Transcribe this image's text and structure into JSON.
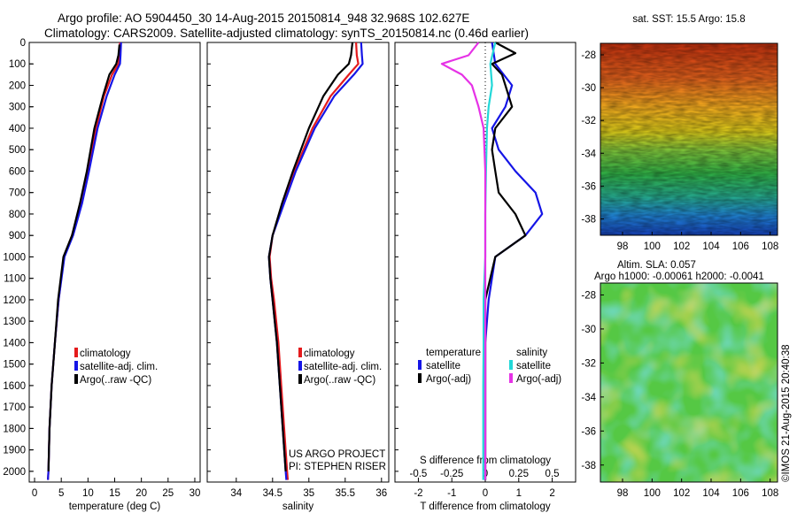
{
  "header": {
    "line1": "Argo profile: AO 5904450_30 14-Aug-2015 20150814_948 32.968S 102.627E",
    "line2": "Climatology: CARS2009. Satellite-adjusted climatology: synTS_20150814.nc (0.46d earlier)"
  },
  "colors": {
    "climatology": "#e41a1c",
    "satellite": "#1515e6",
    "argo": "#000000",
    "sat_salinity": "#22d8d8",
    "argo_salinity": "#e632e6"
  },
  "legend_profiles": [
    "climatology",
    "satellite-adj. clim.",
    "Argo(..raw -QC)"
  ],
  "legend_diff": {
    "temp_header": "temperature",
    "sal_header": "salinity",
    "sat": "satellite",
    "argo": "Argo(-adj)"
  },
  "credit": {
    "line1": "US ARGO PROJECT",
    "line2": "PI: STEPHEN RISER"
  },
  "sst_title": "sat. SST: 15.5 Argo: 15.8",
  "sla_title1": "Altim. SLA: 0.057",
  "sla_title2": "Argo h1000: -0.00061 h2000: -0.0041",
  "side_stamp": "©IMOS 21-Aug-2015 20:40:38",
  "chart_data": [
    {
      "type": "line",
      "xlabel": "temperature (deg C)",
      "ylim": [
        2050,
        0
      ],
      "xlim": [
        -1,
        31
      ],
      "xticks": [
        0,
        5,
        10,
        15,
        20,
        25,
        30
      ],
      "yticks": [
        0,
        100,
        200,
        300,
        400,
        500,
        600,
        700,
        800,
        900,
        1000,
        1100,
        1200,
        1300,
        1400,
        1500,
        1600,
        1700,
        1800,
        1900,
        2000
      ],
      "series": [
        {
          "name": "climatology",
          "color": "#e41a1c",
          "points": [
            [
              16,
              0
            ],
            [
              15.9,
              60
            ],
            [
              15.7,
              100
            ],
            [
              14.5,
              150
            ],
            [
              13,
              250
            ],
            [
              11.5,
              400
            ],
            [
              10,
              600
            ],
            [
              8.7,
              750
            ],
            [
              7,
              900
            ],
            [
              5.5,
              1000
            ],
            [
              4.5,
              1200
            ],
            [
              3.8,
              1400
            ],
            [
              3.2,
              1600
            ],
            [
              2.8,
              1800
            ],
            [
              2.6,
              2000
            ],
            [
              2.5,
              2040
            ]
          ]
        },
        {
          "name": "satellite-adj. clim.",
          "color": "#1515e6",
          "points": [
            [
              16.2,
              0
            ],
            [
              16.1,
              60
            ],
            [
              16,
              100
            ],
            [
              15,
              150
            ],
            [
              13.5,
              250
            ],
            [
              11.8,
              400
            ],
            [
              10.2,
              600
            ],
            [
              8.9,
              750
            ],
            [
              7.2,
              900
            ],
            [
              5.6,
              1000
            ],
            [
              4.5,
              1200
            ],
            [
              3.8,
              1400
            ],
            [
              3.2,
              1600
            ],
            [
              2.8,
              1800
            ],
            [
              2.6,
              2000
            ],
            [
              2.5,
              2040
            ]
          ]
        },
        {
          "name": "Argo(..raw -QC)",
          "color": "#000000",
          "points": [
            [
              15.9,
              10
            ],
            [
              15.7,
              60
            ],
            [
              15.3,
              100
            ],
            [
              14,
              150
            ],
            [
              12.8,
              250
            ],
            [
              11.2,
              400
            ],
            [
              9.8,
              600
            ],
            [
              8.5,
              750
            ],
            [
              7,
              900
            ],
            [
              5.4,
              1000
            ],
            [
              4.4,
              1200
            ],
            [
              3.8,
              1400
            ],
            [
              3.2,
              1600
            ],
            [
              2.8,
              1800
            ],
            [
              2.6,
              2000
            ]
          ]
        }
      ]
    },
    {
      "type": "line",
      "xlabel": "salinity",
      "ylim": [
        2050,
        0
      ],
      "xlim": [
        33.6,
        36.1
      ],
      "xticks": [
        34,
        34.5,
        35,
        35.5,
        36
      ],
      "series": [
        {
          "name": "climatology",
          "color": "#e41a1c",
          "points": [
            [
              35.65,
              0
            ],
            [
              35.66,
              60
            ],
            [
              35.68,
              100
            ],
            [
              35.55,
              150
            ],
            [
              35.3,
              250
            ],
            [
              35.05,
              400
            ],
            [
              34.8,
              600
            ],
            [
              34.65,
              750
            ],
            [
              34.5,
              900
            ],
            [
              34.46,
              1000
            ],
            [
              34.48,
              1100
            ],
            [
              34.52,
              1200
            ],
            [
              34.58,
              1400
            ],
            [
              34.62,
              1600
            ],
            [
              34.66,
              1800
            ],
            [
              34.7,
              2000
            ],
            [
              34.71,
              2040
            ]
          ]
        },
        {
          "name": "satellite-adj. clim.",
          "color": "#1515e6",
          "points": [
            [
              35.72,
              0
            ],
            [
              35.73,
              60
            ],
            [
              35.74,
              100
            ],
            [
              35.62,
              150
            ],
            [
              35.35,
              250
            ],
            [
              35.08,
              400
            ],
            [
              34.82,
              600
            ],
            [
              34.66,
              750
            ],
            [
              34.5,
              900
            ],
            [
              34.45,
              1000
            ],
            [
              34.47,
              1100
            ],
            [
              34.5,
              1200
            ],
            [
              34.56,
              1400
            ],
            [
              34.6,
              1600
            ],
            [
              34.64,
              1800
            ],
            [
              34.68,
              2000
            ],
            [
              34.69,
              2040
            ]
          ]
        },
        {
          "name": "Argo(..raw -QC)",
          "color": "#000000",
          "points": [
            [
              35.6,
              0
            ],
            [
              35.58,
              60
            ],
            [
              35.55,
              100
            ],
            [
              35.4,
              150
            ],
            [
              35.2,
              250
            ],
            [
              35.0,
              400
            ],
            [
              34.78,
              600
            ],
            [
              34.63,
              750
            ],
            [
              34.5,
              900
            ],
            [
              34.45,
              1000
            ],
            [
              34.47,
              1100
            ],
            [
              34.5,
              1200
            ],
            [
              34.56,
              1400
            ],
            [
              34.6,
              1600
            ],
            [
              34.64,
              1800
            ],
            [
              34.68,
              2000
            ]
          ]
        }
      ]
    },
    {
      "type": "line",
      "xlabel": "T difference from climatology",
      "top_label": "S difference from climatology",
      "ylim": [
        2050,
        0
      ],
      "xlim": [
        -2.7,
        2.7
      ],
      "xticks": [
        -2,
        -1,
        0,
        1,
        2
      ],
      "top_ticks": [
        "-0.5",
        "-0.25",
        "0",
        "0.25",
        "0.5"
      ],
      "series": [
        {
          "name": "temperature satellite",
          "color": "#1515e6",
          "points": [
            [
              0.2,
              0
            ],
            [
              0.3,
              100
            ],
            [
              0.8,
              200
            ],
            [
              0.6,
              300
            ],
            [
              0.2,
              400
            ],
            [
              0.4,
              500
            ],
            [
              0.9,
              600
            ],
            [
              1.5,
              700
            ],
            [
              1.7,
              800
            ],
            [
              1.2,
              900
            ],
            [
              0.3,
              1000
            ],
            [
              0.1,
              1200
            ],
            [
              0,
              1400
            ],
            [
              0,
              1600
            ],
            [
              0,
              1800
            ],
            [
              0,
              2040
            ]
          ]
        },
        {
          "name": "temperature Argo(-adj)",
          "color": "#000000",
          "points": [
            [
              0.3,
              0
            ],
            [
              0.9,
              50
            ],
            [
              0.2,
              100
            ],
            [
              0.5,
              150
            ],
            [
              0.6,
              200
            ],
            [
              0.8,
              300
            ],
            [
              0.3,
              400
            ],
            [
              0.2,
              500
            ],
            [
              0.3,
              600
            ],
            [
              0.4,
              700
            ],
            [
              0.9,
              800
            ],
            [
              1.2,
              900
            ],
            [
              0.3,
              1000
            ],
            [
              0,
              1200
            ],
            [
              0,
              1400
            ],
            [
              0,
              1600
            ],
            [
              0,
              1800
            ],
            [
              0,
              2040
            ]
          ]
        },
        {
          "name": "salinity satellite",
          "color": "#22d8d8",
          "points": [
            [
              0.3,
              0
            ],
            [
              0.15,
              100
            ],
            [
              0.2,
              200
            ],
            [
              0.1,
              300
            ],
            [
              0.05,
              400
            ],
            [
              0.02,
              600
            ],
            [
              0,
              800
            ],
            [
              0,
              1000
            ],
            [
              -0.05,
              1200
            ],
            [
              -0.05,
              1400
            ],
            [
              -0.06,
              1600
            ],
            [
              -0.06,
              1800
            ],
            [
              -0.06,
              2040
            ]
          ]
        },
        {
          "name": "salinity Argo(-adj)",
          "color": "#e632e6",
          "points": [
            [
              -0.2,
              0
            ],
            [
              -0.5,
              60
            ],
            [
              -1.3,
              100
            ],
            [
              -0.7,
              150
            ],
            [
              -0.4,
              200
            ],
            [
              -0.2,
              300
            ],
            [
              -0.05,
              400
            ],
            [
              0,
              600
            ],
            [
              0,
              800
            ],
            [
              0,
              1000
            ],
            [
              0,
              1200
            ],
            [
              0,
              1400
            ],
            [
              0,
              1600
            ],
            [
              0,
              1800
            ],
            [
              0,
              2040
            ]
          ]
        }
      ]
    },
    {
      "type": "heatmap",
      "title": "sat. SST: 15.5 Argo: 15.8",
      "xlim": [
        96.5,
        108.5
      ],
      "ylim": [
        -39,
        -27.3
      ],
      "xticks": [
        98,
        100,
        102,
        104,
        106,
        108
      ],
      "yticks": [
        -28,
        -30,
        -32,
        -34,
        -36,
        -38
      ],
      "marker": [
        102.627,
        -32.968
      ]
    },
    {
      "type": "heatmap",
      "title": "Altim. SLA: 0.057",
      "xlim": [
        96.5,
        108.5
      ],
      "ylim": [
        -39,
        -27.3
      ],
      "xticks": [
        98,
        100,
        102,
        104,
        106,
        108
      ],
      "yticks": [
        -28,
        -30,
        -32,
        -34,
        -36,
        -38
      ],
      "marker": [
        102.627,
        -32.968
      ]
    }
  ]
}
